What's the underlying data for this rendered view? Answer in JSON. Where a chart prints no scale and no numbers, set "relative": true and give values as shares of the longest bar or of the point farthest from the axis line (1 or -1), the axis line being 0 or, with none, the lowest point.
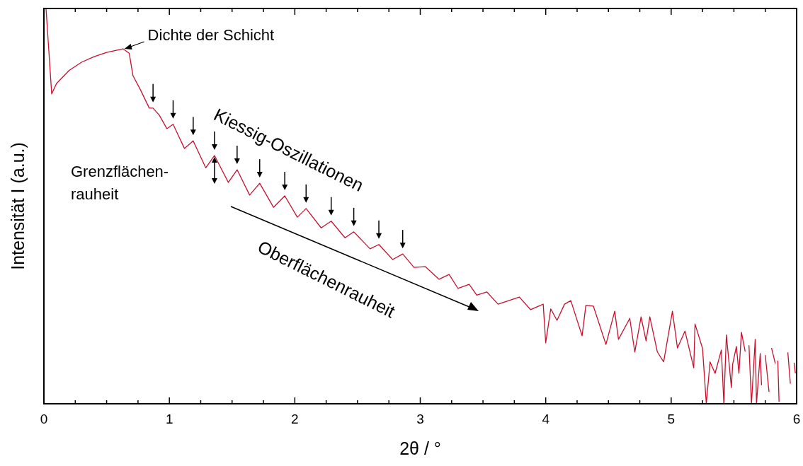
{
  "chart_data": {
    "type": "line",
    "xlabel": "2θ / °",
    "ylabel": "Intensität I (a.u.)",
    "relative": true,
    "grid": false,
    "marker": "none",
    "line_style": "solid",
    "xlim": [
      0,
      6
    ],
    "xticks": [
      0,
      {
        "value": 0.25,
        "label": null
      },
      {
        "value": 0.5,
        "label": null
      },
      {
        "value": 0.75,
        "label": null
      },
      1,
      {
        "value": 1.25,
        "label": null
      },
      {
        "value": 1.5,
        "label": null
      },
      {
        "value": 1.75,
        "label": null
      },
      2,
      {
        "value": 2.25,
        "label": null
      },
      {
        "value": 2.5,
        "label": null
      },
      {
        "value": 2.75,
        "label": null
      },
      3,
      {
        "value": 3.25,
        "label": null
      },
      {
        "value": 3.5,
        "label": null
      },
      {
        "value": 3.75,
        "label": null
      },
      4,
      {
        "value": 4.25,
        "label": null
      },
      {
        "value": 4.5,
        "label": null
      },
      {
        "value": 4.75,
        "label": null
      },
      5,
      {
        "value": 5.25,
        "label": null
      },
      {
        "value": 5.5,
        "label": null
      },
      {
        "value": 5.75,
        "label": null
      },
      6
    ],
    "annotations": [
      {
        "text": "Dichte der Schicht",
        "x": 0.63,
        "y": 0.898
      },
      "Kiessig-Oszillationen",
      "Grenzflächen-\nrauheit",
      "Oberflächenrauheit"
    ],
    "series": [
      {
        "color": "#c8102e",
        "x": [
          0.017,
          0.062,
          0.1,
          0.2,
          0.3,
          0.4,
          0.5,
          0.63,
          0.68,
          0.71,
          0.77,
          0.84,
          0.87,
          0.92,
          0.98,
          1.03,
          1.12,
          1.19,
          1.29,
          1.36,
          1.47,
          1.54,
          1.64,
          1.72,
          1.83,
          1.92,
          2.02,
          2.09,
          2.21,
          2.29,
          2.4,
          2.47,
          2.6,
          2.67,
          2.78,
          2.86,
          2.95,
          3.04,
          3.15,
          3.23,
          3.3,
          3.39,
          3.45,
          3.53,
          3.62,
          3.79,
          3.88,
          3.98,
          4.0,
          4.04,
          4.09,
          4.15,
          4.2,
          4.29,
          4.32,
          4.38,
          4.48,
          4.55,
          4.58,
          4.67,
          4.71,
          4.76,
          4.8,
          4.83,
          4.89,
          4.94,
          5.01,
          5.05,
          5.11,
          5.18,
          5.19,
          5.25,
          5.28,
          5.31,
          5.35,
          5.4,
          5.42,
          5.44,
          5.48,
          5.49,
          5.52,
          5.54,
          5.56,
          5.59,
          5.605,
          5.62,
          5.64,
          5.67,
          5.68,
          5.71,
          5.72,
          5.735,
          5.75,
          5.78,
          5.79,
          5.8,
          5.83,
          5.845,
          5.85,
          5.86,
          5.92,
          5.93,
          5.95,
          5.96,
          5.98,
          5.99
        ],
        "values": [
          1,
          0.784,
          0.81,
          0.843,
          0.864,
          0.878,
          0.889,
          0.898,
          0.887,
          0.83,
          0.794,
          0.748,
          0.748,
          0.73,
          0.696,
          0.707,
          0.646,
          0.665,
          0.597,
          0.628,
          0.56,
          0.592,
          0.528,
          0.558,
          0.497,
          0.526,
          0.472,
          0.494,
          0.445,
          0.462,
          0.42,
          0.435,
          0.392,
          0.403,
          0.365,
          0.379,
          0.345,
          0.347,
          0.315,
          0.327,
          0.292,
          0.302,
          0.275,
          0.283,
          0.252,
          0.27,
          0.238,
          0.252,
          0.154,
          0.24,
          0.211,
          0.252,
          0.261,
          0.172,
          0.249,
          0.247,
          0.15,
          0.234,
          0.163,
          0.216,
          0.131,
          0.22,
          0.159,
          0.22,
          0.131,
          0.106,
          0.234,
          0.141,
          0.184,
          0.091,
          0.202,
          0.14,
          0,
          0.106,
          0.077,
          0.136,
          0,
          0.174,
          0.041,
          0.1,
          0.145,
          0.077,
          0.181,
          0.132,
          null,
          0.148,
          0,
          0.163,
          0,
          0.127,
          0.047,
          null,
          0.123,
          0.03,
          null,
          0.141,
          0.102,
          null,
          0.109,
          0.005,
          null,
          0.13,
          0.051,
          null,
          0.104,
          0.077
        ]
      }
    ]
  }
}
